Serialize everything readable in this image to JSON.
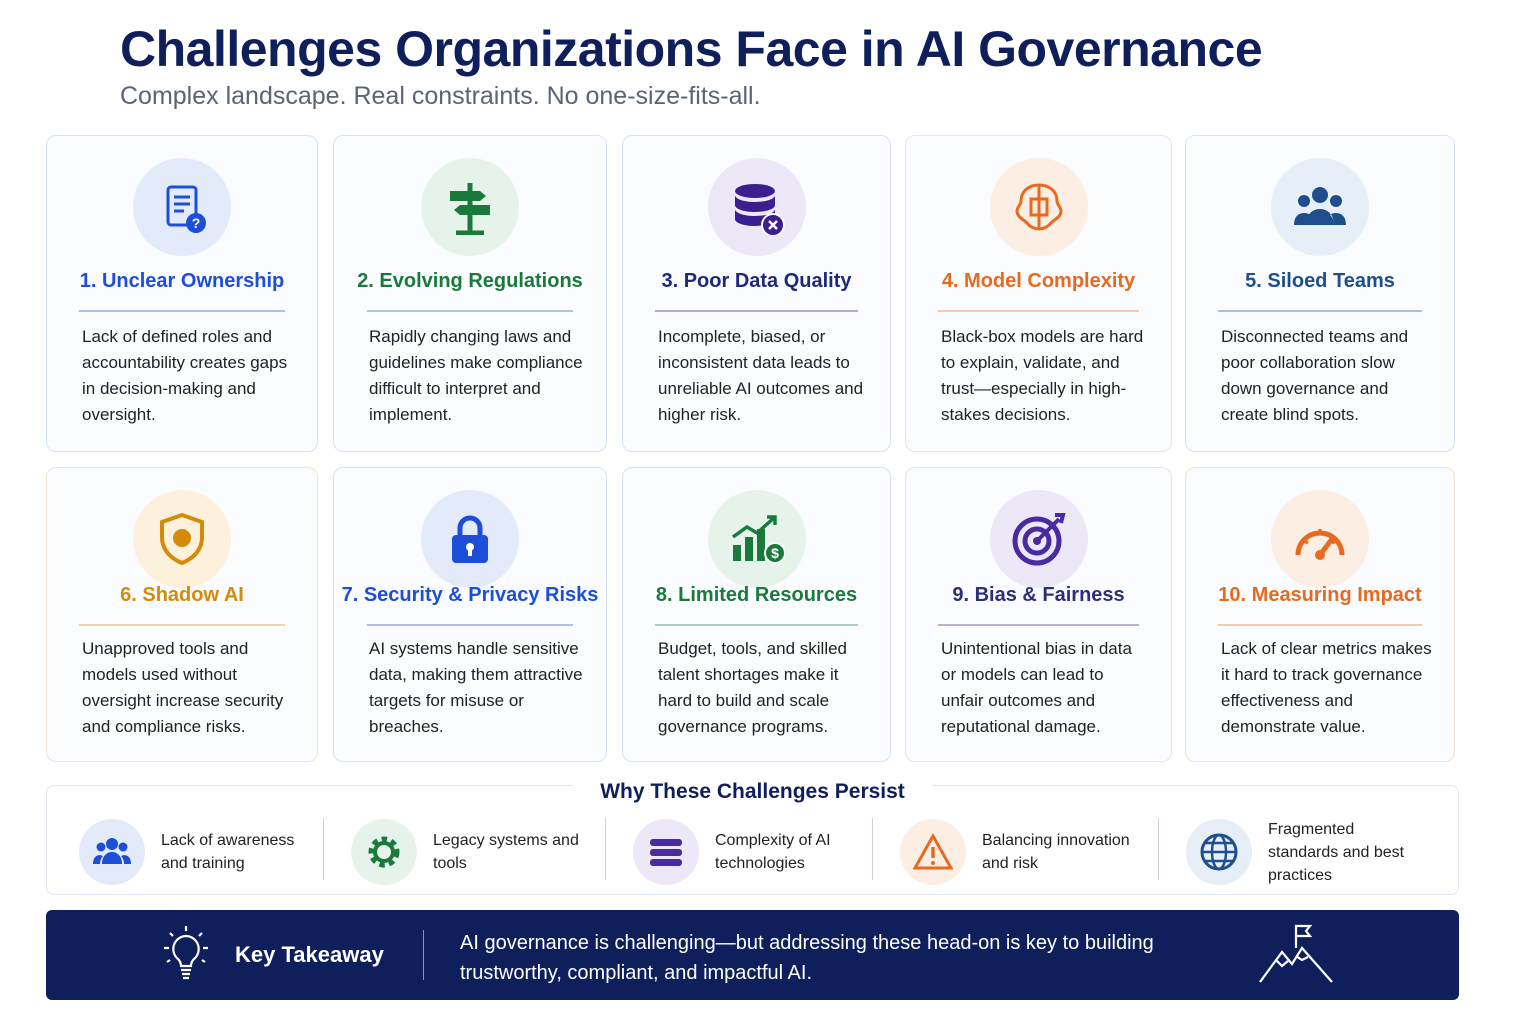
{
  "header": {
    "title": "Challenges Organizations Face in AI Governance",
    "subtitle": "Complex landscape. Real constraints. No one-size-fits-all."
  },
  "cards": [
    {
      "title": "1. Unclear Ownership",
      "text": "Lack of defined roles and accountability creates gaps in decision-making and oversight."
    },
    {
      "title": "2. Evolving Regulations",
      "text": "Rapidly changing laws and guidelines make compliance difficult to interpret and implement."
    },
    {
      "title": "3. Poor Data Quality",
      "text": "Incomplete, biased, or inconsistent data leads to unreliable AI outcomes and higher risk."
    },
    {
      "title": "4. Model Complexity",
      "text": "Black-box models are hard to explain, validate, and trust—especially in high-stakes decisions."
    },
    {
      "title": "5. Siloed Teams",
      "text": "Disconnected teams and poor collaboration slow down governance and create blind spots."
    },
    {
      "title": "6. Shadow AI",
      "text": "Unapproved tools and models used without oversight increase security and compliance risks."
    },
    {
      "title": "7. Security & Privacy Risks",
      "text": "AI systems handle sensitive data, making them attractive targets for misuse or breaches."
    },
    {
      "title": "8. Limited Resources",
      "text": "Budget, tools, and skilled talent shortages make it hard to build and scale governance programs."
    },
    {
      "title": "9. Bias & Fairness",
      "text": "Unintentional bias in data or models can lead to unfair outcomes and reputational damage."
    },
    {
      "title": "10. Measuring Impact",
      "text": "Lack of clear metrics makes it hard to track governance effectiveness and demonstrate value."
    }
  ],
  "persist": {
    "title": "Why These Challenges Persist",
    "items": [
      "Lack of awareness and training",
      "Legacy systems and tools",
      "Complexity of AI technologies",
      "Balancing innovation and risk",
      "Fragmented standards and best practices"
    ]
  },
  "takeaway": {
    "label": "Key Takeaway",
    "text": "AI governance is challenging—but addressing these head-on is key to building trustworthy, compliant, and impactful AI."
  }
}
